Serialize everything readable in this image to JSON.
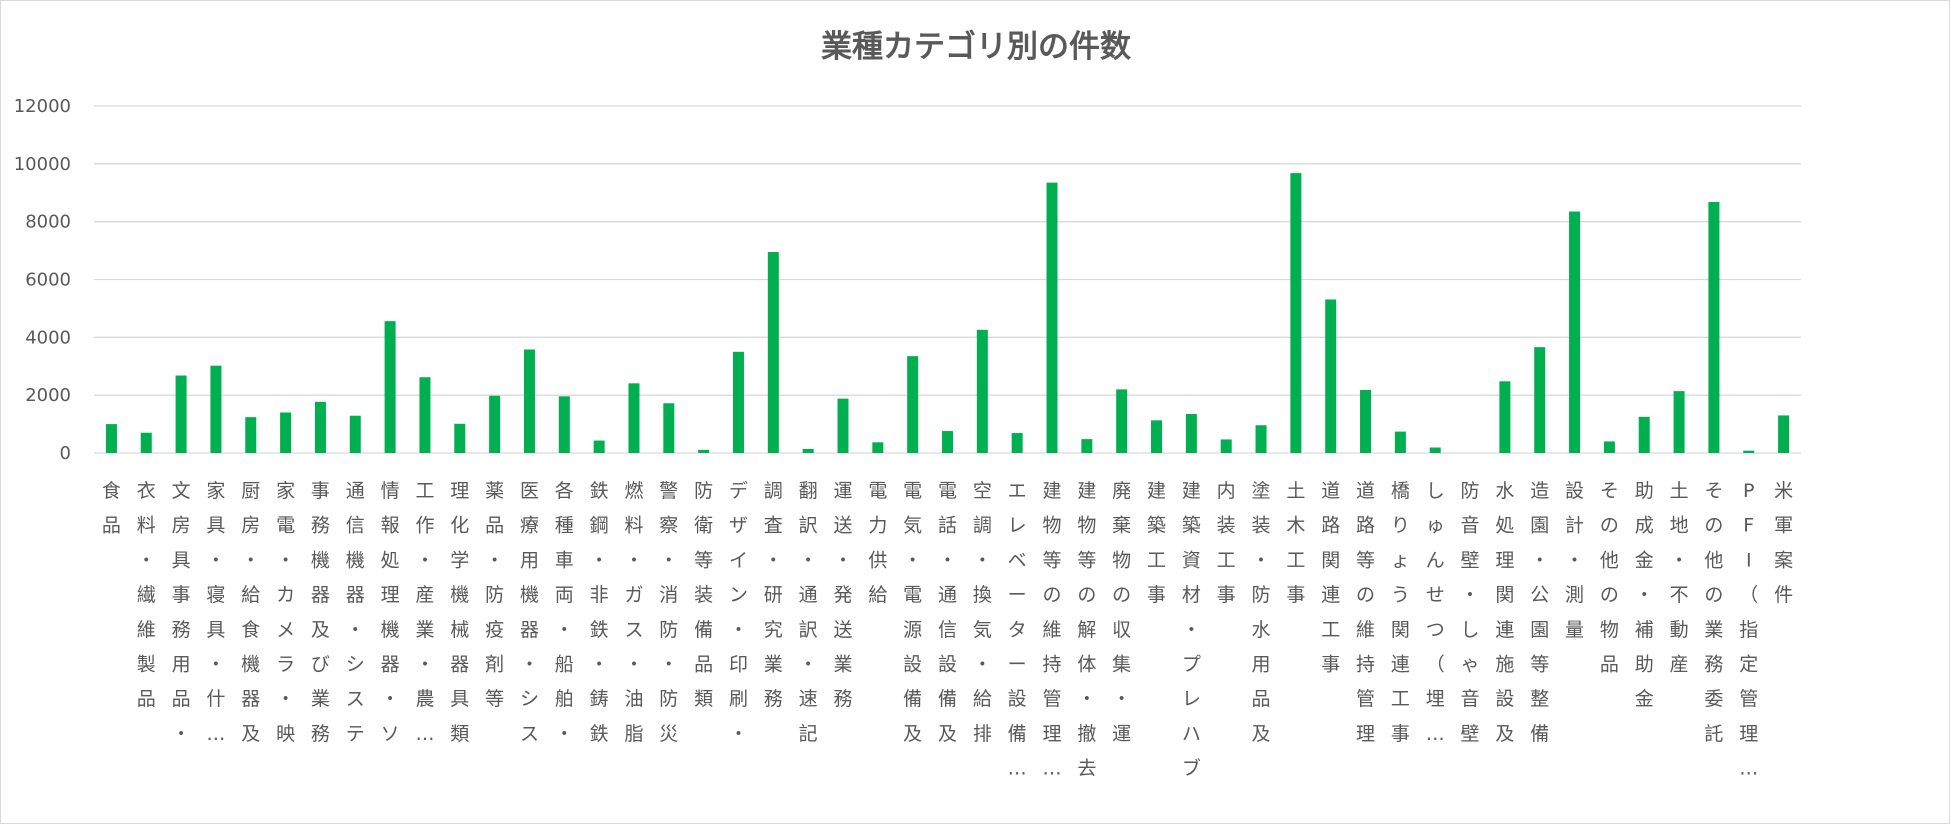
{
  "chart_data": {
    "type": "bar",
    "title": "業種カテゴリ別の件数",
    "xlabel": "",
    "ylabel": "",
    "ylim": [
      0,
      12000
    ],
    "yticks": [
      "0",
      "2000",
      "4000",
      "6000",
      "8000",
      "10000",
      "12000"
    ],
    "grid": true,
    "legend": "none",
    "bar_color": "#00b050",
    "categories": [
      "食品",
      "衣料・繊維製品",
      "文房具事務用品・",
      "家具・寝具・什…",
      "厨房・給食機器及",
      "家電・カメラ・映",
      "事務機器及び業務",
      "通信機器・システ",
      "情報処理機器・ソ",
      "工作・産業・農…",
      "理化学機械器具類",
      "薬品・防疫剤等",
      "医療用機器・シス",
      "各種車両・船舶・",
      "鉄鋼・非鉄・鋳鉄",
      "燃料・ガス・油脂",
      "警察・消防・防災",
      "防衛等装備品類",
      "デザイン・印刷・",
      "調査・研究業務",
      "翻訳・通訳・速記",
      "運送・発送業務",
      "電力供給",
      "電気・電源設備及",
      "電話・通信設備及",
      "空調・換気・給排",
      "エレベーター設備…",
      "建物等の維持管理…",
      "建物等の解体・撤去",
      "廃棄物の収集・運",
      "建築工事",
      "建築資材・プレハブ",
      "内装工事",
      "塗装・防水用品及",
      "土木工事",
      "道路関連工事",
      "道路等の維持管理",
      "橋りょう関連工事",
      "しゅんせつ（埋…",
      "防音壁・しゃ音壁",
      "水処理関連施設及",
      "造園・公園等整備",
      "設計・測量",
      "その他の物品",
      "助成金・補助金",
      "土地・不動産",
      "その他の業務委託",
      "PFI（指定管理…",
      "米軍案件"
    ],
    "values": [
      1000,
      700,
      2680,
      3020,
      1240,
      1400,
      1770,
      1290,
      4560,
      2620,
      1010,
      1980,
      3580,
      1960,
      430,
      2410,
      1720,
      110,
      3500,
      6950,
      140,
      1880,
      370,
      3350,
      760,
      4260,
      690,
      9350,
      480,
      2200,
      1130,
      1350,
      470,
      960,
      9680,
      5310,
      2180,
      740,
      190,
      0,
      2480,
      3660,
      8350,
      400,
      1250,
      2140,
      8680,
      80,
      1300
    ]
  }
}
